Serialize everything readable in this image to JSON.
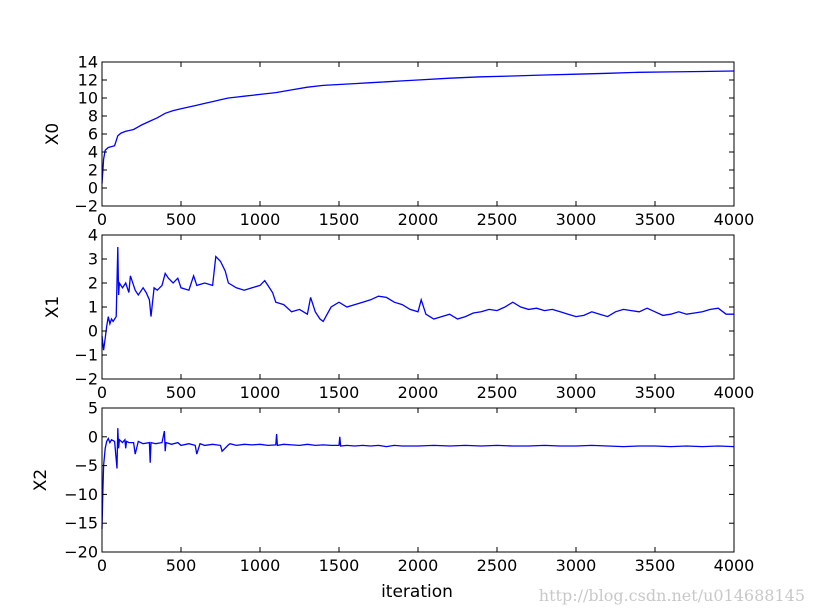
{
  "xlabel": "iteration",
  "watermark": "http://blog.csdn.net/u014688145",
  "colors": {
    "series": "#0000ff",
    "axes": "#000000",
    "watermark": "#c8c8c8"
  },
  "chart_data": [
    {
      "type": "line",
      "ylabel": "X0",
      "xlim": [
        0,
        4000
      ],
      "ylim": [
        -2,
        14
      ],
      "xticks": [
        0,
        500,
        1000,
        1500,
        2000,
        2500,
        3000,
        3500,
        4000
      ],
      "yticks": [
        -2,
        0,
        2,
        4,
        6,
        8,
        10,
        12,
        14
      ],
      "grid": false,
      "series": [
        {
          "x": [
            0,
            5,
            10,
            20,
            40,
            60,
            80,
            100,
            120,
            150,
            200,
            250,
            300,
            350,
            400,
            450,
            500,
            550,
            600,
            650,
            700,
            750,
            800,
            850,
            900,
            1000,
            1100,
            1200,
            1300,
            1400,
            1500,
            1600,
            1700,
            1800,
            1900,
            2000,
            2200,
            2400,
            2600,
            2800,
            3000,
            3200,
            3400,
            3600,
            3800,
            4000
          ],
          "y": [
            0.5,
            1.8,
            3.2,
            4.2,
            4.5,
            4.6,
            4.7,
            5.8,
            6.1,
            6.3,
            6.5,
            7.0,
            7.4,
            7.8,
            8.3,
            8.6,
            8.8,
            9.0,
            9.2,
            9.4,
            9.6,
            9.8,
            10.0,
            10.1,
            10.2,
            10.4,
            10.6,
            10.9,
            11.2,
            11.4,
            11.5,
            11.6,
            11.7,
            11.8,
            11.9,
            12.0,
            12.2,
            12.35,
            12.45,
            12.55,
            12.65,
            12.75,
            12.85,
            12.9,
            12.95,
            13.0
          ]
        }
      ]
    },
    {
      "type": "line",
      "ylabel": "X1",
      "xlim": [
        0,
        4000
      ],
      "ylim": [
        -2,
        4
      ],
      "xticks": [
        0,
        500,
        1000,
        1500,
        2000,
        2500,
        3000,
        3500,
        4000
      ],
      "yticks": [
        -2,
        -1,
        0,
        1,
        2,
        3,
        4
      ],
      "grid": false,
      "series": [
        {
          "x": [
            0,
            10,
            20,
            30,
            40,
            50,
            60,
            70,
            90,
            100,
            105,
            110,
            130,
            150,
            170,
            180,
            200,
            210,
            230,
            260,
            280,
            300,
            310,
            330,
            350,
            380,
            400,
            420,
            450,
            480,
            500,
            550,
            580,
            600,
            650,
            700,
            720,
            750,
            780,
            800,
            850,
            900,
            950,
            1000,
            1030,
            1050,
            1080,
            1100,
            1150,
            1200,
            1250,
            1300,
            1320,
            1350,
            1380,
            1400,
            1450,
            1500,
            1550,
            1600,
            1650,
            1700,
            1750,
            1800,
            1850,
            1900,
            1950,
            2000,
            2020,
            2050,
            2100,
            2150,
            2200,
            2250,
            2300,
            2350,
            2400,
            2450,
            2500,
            2550,
            2600,
            2650,
            2700,
            2750,
            2800,
            2850,
            2900,
            2950,
            3000,
            3050,
            3100,
            3150,
            3200,
            3250,
            3300,
            3350,
            3400,
            3450,
            3500,
            3550,
            3600,
            3650,
            3700,
            3750,
            3800,
            3850,
            3900,
            3950,
            4000
          ],
          "y": [
            -0.2,
            -0.8,
            -0.3,
            0.2,
            0.6,
            0.3,
            0.5,
            0.4,
            0.6,
            3.5,
            1.5,
            2.0,
            1.8,
            2.0,
            1.6,
            2.3,
            1.9,
            1.7,
            1.5,
            1.8,
            1.6,
            1.3,
            0.6,
            1.8,
            1.7,
            1.9,
            2.4,
            2.2,
            2.0,
            2.2,
            1.8,
            1.7,
            2.3,
            1.9,
            2.0,
            1.9,
            3.1,
            2.9,
            2.5,
            2.0,
            1.8,
            1.7,
            1.8,
            1.9,
            2.1,
            1.9,
            1.6,
            1.2,
            1.1,
            0.8,
            0.9,
            0.7,
            1.4,
            0.8,
            0.5,
            0.4,
            1.0,
            1.2,
            1.0,
            1.1,
            1.2,
            1.3,
            1.45,
            1.4,
            1.2,
            1.1,
            0.9,
            0.8,
            1.3,
            0.7,
            0.5,
            0.6,
            0.7,
            0.5,
            0.6,
            0.75,
            0.8,
            0.9,
            0.85,
            1.0,
            1.2,
            1.0,
            0.9,
            0.95,
            0.85,
            0.9,
            0.8,
            0.7,
            0.6,
            0.65,
            0.8,
            0.7,
            0.6,
            0.8,
            0.9,
            0.85,
            0.8,
            0.95,
            0.8,
            0.65,
            0.7,
            0.8,
            0.7,
            0.75,
            0.8,
            0.9,
            0.95,
            0.7,
            0.7
          ]
        }
      ]
    },
    {
      "type": "line",
      "ylabel": "X2",
      "xlim": [
        0,
        4000
      ],
      "ylim": [
        -20,
        5
      ],
      "xticks": [
        0,
        500,
        1000,
        1500,
        2000,
        2500,
        3000,
        3500,
        4000
      ],
      "yticks": [
        -20,
        -15,
        -10,
        -5,
        0,
        5
      ],
      "grid": false,
      "series": [
        {
          "x": [
            0,
            5,
            10,
            20,
            30,
            40,
            50,
            60,
            80,
            95,
            100,
            105,
            110,
            130,
            145,
            150,
            155,
            170,
            200,
            210,
            230,
            260,
            300,
            305,
            310,
            340,
            380,
            395,
            400,
            405,
            440,
            480,
            500,
            550,
            590,
            600,
            620,
            650,
            700,
            750,
            760,
            800,
            810,
            850,
            900,
            950,
            1000,
            1050,
            1100,
            1105,
            1110,
            1150,
            1200,
            1250,
            1300,
            1350,
            1400,
            1450,
            1500,
            1505,
            1510,
            1550,
            1600,
            1650,
            1700,
            1750,
            1800,
            1850,
            1900,
            2000,
            2100,
            2200,
            2300,
            2400,
            2500,
            2600,
            2700,
            2800,
            2900,
            3000,
            3100,
            3200,
            3300,
            3400,
            3500,
            3600,
            3700,
            3800,
            3900,
            4000
          ],
          "y": [
            -16,
            -10,
            -5,
            -2,
            -0.8,
            -0.3,
            -1.0,
            -0.5,
            -0.8,
            -5.5,
            1.5,
            -2.0,
            -0.5,
            -1.0,
            -0.5,
            -2.0,
            -0.8,
            -1.0,
            -1.0,
            -3.0,
            -0.8,
            -1.2,
            -1.0,
            -4.5,
            -1.0,
            -1.2,
            -1.0,
            1.0,
            -2.5,
            -1.0,
            -1.3,
            -1.0,
            -1.5,
            -1.2,
            -1.5,
            -3.0,
            -1.2,
            -1.5,
            -1.3,
            -1.5,
            -2.5,
            -1.4,
            -1.2,
            -1.5,
            -1.3,
            -1.4,
            -1.3,
            -1.5,
            -1.4,
            0.5,
            -1.5,
            -1.3,
            -1.4,
            -1.5,
            -1.3,
            -1.5,
            -1.4,
            -1.5,
            -1.5,
            0.0,
            -1.6,
            -1.5,
            -1.6,
            -1.5,
            -1.6,
            -1.5,
            -1.7,
            -1.5,
            -1.6,
            -1.6,
            -1.5,
            -1.6,
            -1.5,
            -1.6,
            -1.5,
            -1.6,
            -1.6,
            -1.5,
            -1.6,
            -1.6,
            -1.5,
            -1.6,
            -1.7,
            -1.6,
            -1.6,
            -1.7,
            -1.6,
            -1.7,
            -1.6,
            -1.7
          ]
        }
      ]
    }
  ]
}
